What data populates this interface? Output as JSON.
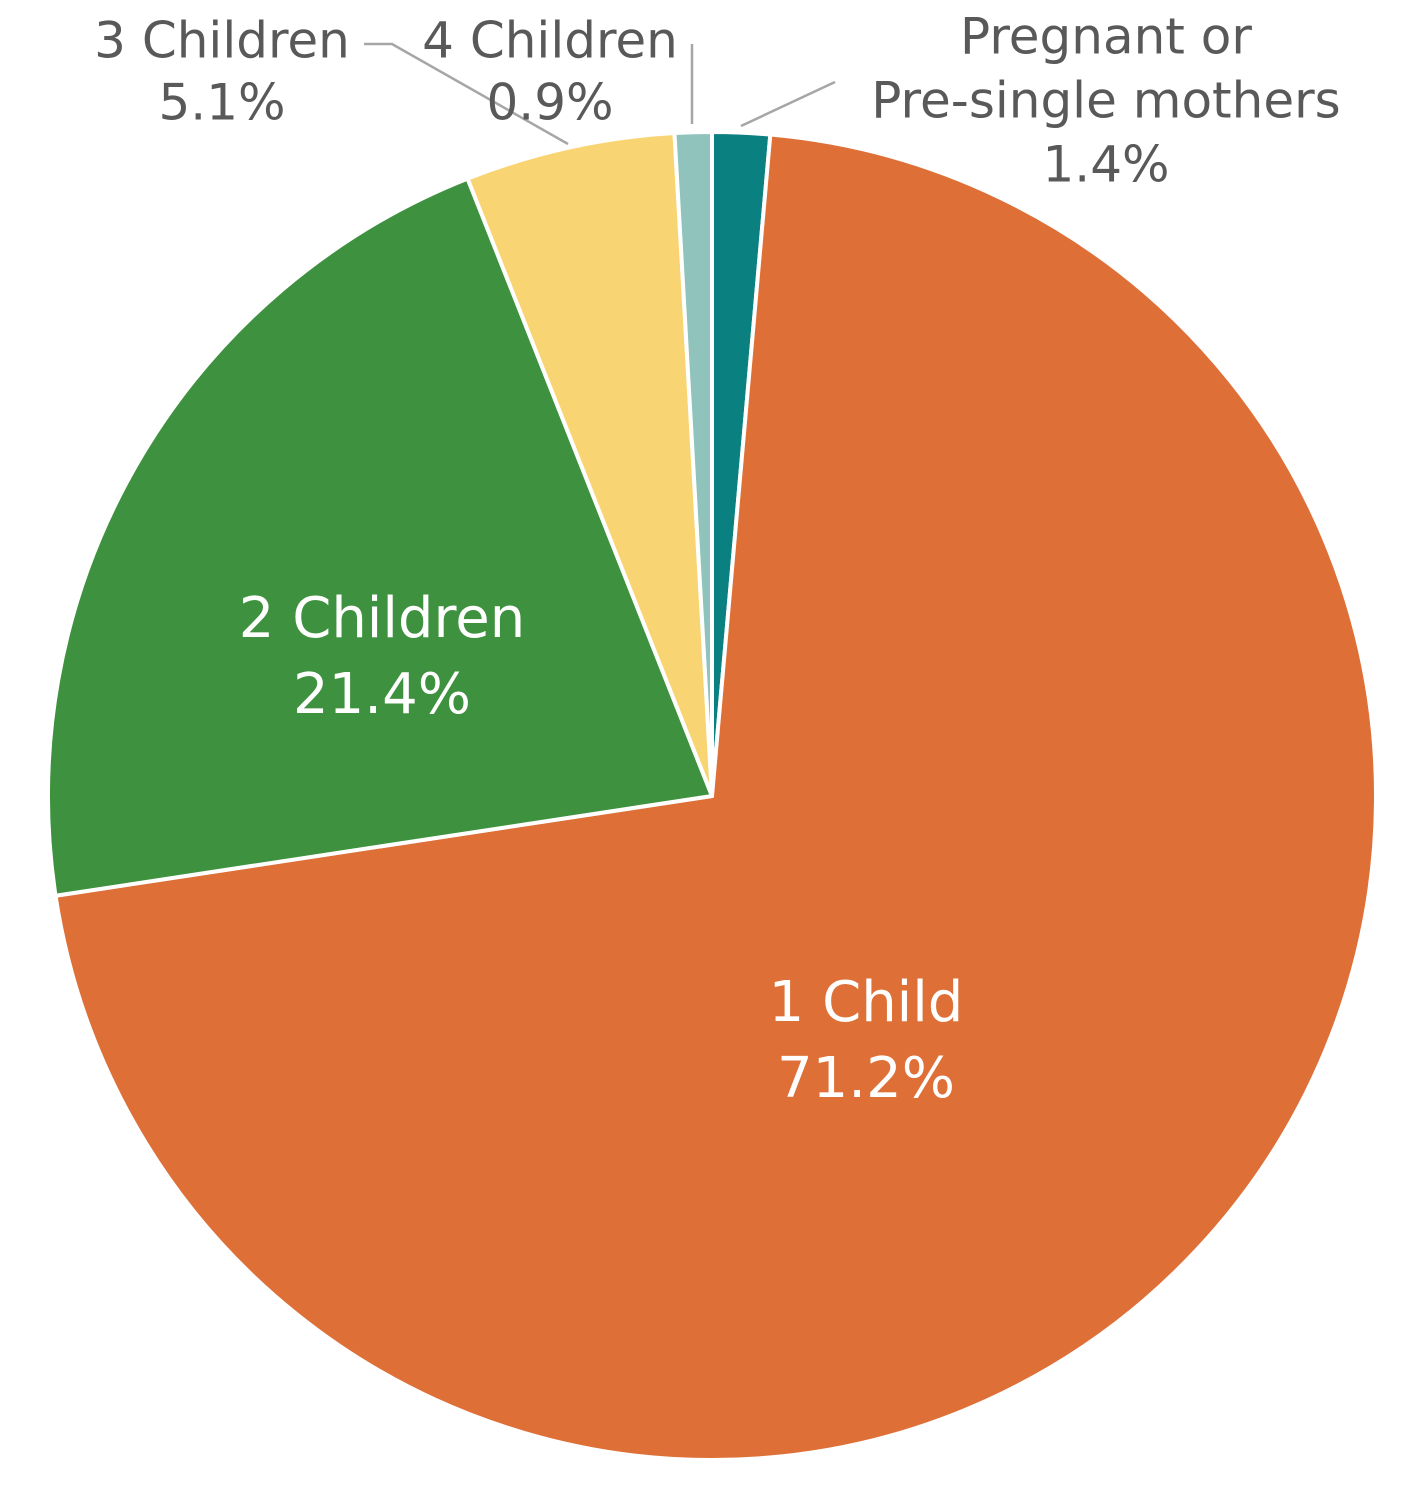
{
  "chart_data": {
    "type": "pie",
    "title": "",
    "start_angle_deg": 0,
    "direction": "clockwise",
    "legend": "none",
    "slices": [
      {
        "name": "Pregnant or Pre-single mothers",
        "value": 1.4,
        "value_label": "1.4%",
        "label_lines": [
          "Pregnant or",
          "Pre-single mothers"
        ],
        "label_position": "outside",
        "color": "#0a8080"
      },
      {
        "name": "1 Child",
        "value": 71.2,
        "value_label": "71.2%",
        "label_lines": [
          "1 Child"
        ],
        "label_position": "inside",
        "color": "#de6f37"
      },
      {
        "name": "2 Children",
        "value": 21.4,
        "value_label": "21.4%",
        "label_lines": [
          "2 Children"
        ],
        "label_position": "inside",
        "color": "#3e913e"
      },
      {
        "name": "3 Children",
        "value": 5.1,
        "value_label": "5.1%",
        "label_lines": [
          "3 Children"
        ],
        "label_position": "outside",
        "color": "#f9d473"
      },
      {
        "name": "4 Children",
        "value": 0.9,
        "value_label": "0.9%",
        "label_lines": [
          "4 Children"
        ],
        "label_position": "outside",
        "color": "#8fc3bb"
      }
    ]
  }
}
